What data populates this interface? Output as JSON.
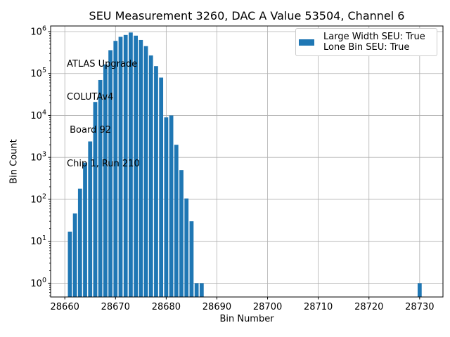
{
  "chart_data": {
    "type": "bar",
    "title": "SEU Measurement 3260, DAC A Value 53504, Channel 6",
    "xlabel": "Bin Number",
    "ylabel": "Bin Count",
    "yscale": "log",
    "grid": true,
    "legend_position": "upper right",
    "xlim": [
      28657.2,
      28734.6
    ],
    "ylim": [
      0.47,
      1360000
    ],
    "x_ticks": [
      28660,
      28670,
      28680,
      28690,
      28700,
      28710,
      28720,
      28730
    ],
    "y_tick_exponents": [
      0,
      1,
      2,
      3,
      4,
      5,
      6
    ],
    "bar_color": "#1f77b4",
    "grid_color": "#b0b0b0",
    "spine_color": "#000000",
    "bins": [
      28661,
      28662,
      28663,
      28664,
      28665,
      28666,
      28667,
      28668,
      28669,
      28670,
      28671,
      28672,
      28673,
      28674,
      28675,
      28676,
      28677,
      28678,
      28679,
      28680,
      28681,
      28682,
      28683,
      28684,
      28685,
      28686,
      28687,
      28730
    ],
    "counts": [
      17,
      46,
      180,
      750,
      2400,
      21000,
      70000,
      165000,
      360000,
      600000,
      750000,
      830000,
      950000,
      800000,
      630000,
      450000,
      270000,
      150000,
      80000,
      9000,
      10000,
      2000,
      500,
      105,
      30,
      1,
      1,
      1
    ],
    "bar_width_fraction": 0.8,
    "annotation": {
      "lines": [
        "ATLAS Upgrade",
        "COLUTAv4",
        " Board 92",
        "Chip 1, Run 210"
      ]
    },
    "legend": {
      "swatch_color": "#1f77b4",
      "labels": [
        "Large Width SEU: True",
        "Lone Bin SEU: True"
      ]
    }
  }
}
